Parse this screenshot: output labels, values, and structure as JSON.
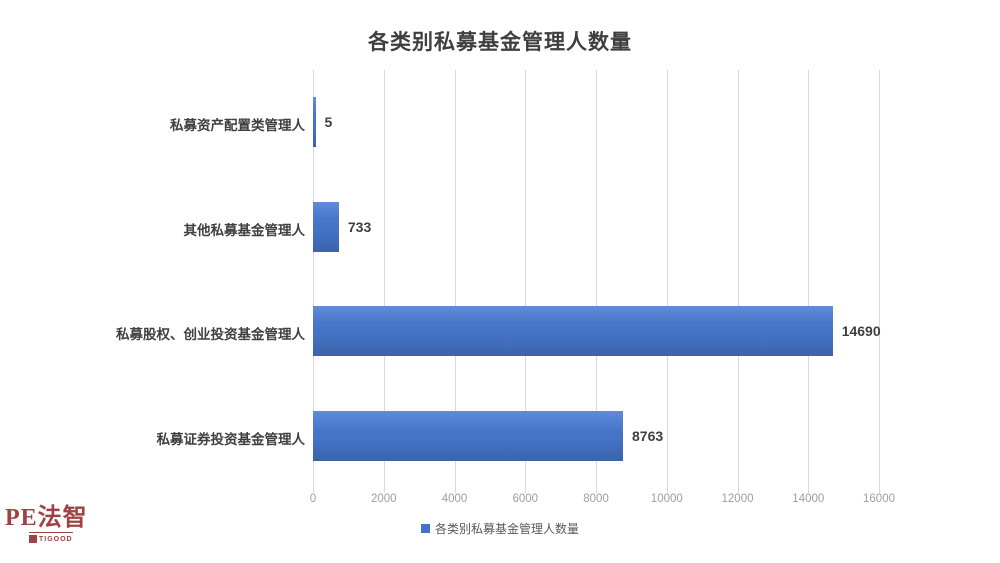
{
  "chart_data": {
    "type": "bar",
    "orientation": "horizontal",
    "title": "各类别私募基金管理人数量",
    "categories": [
      "私募资产配置类管理人",
      "其他私募基金管理人",
      "私募股权、创业投资基金管理人",
      "私募证券投资基金管理人"
    ],
    "values": [
      5,
      733,
      14690,
      8763
    ],
    "xlabel": "",
    "ylabel": "",
    "xlim": [
      0,
      16000
    ],
    "xticks": [
      0,
      2000,
      4000,
      6000,
      8000,
      10000,
      12000,
      14000,
      16000
    ],
    "grid": true,
    "legend": "各类别私募基金管理人数量",
    "legend_position": "bottom",
    "bar_color": "#4472c4",
    "gridline_color": "#d9d9d9",
    "data_label_color": "#3f3f3f",
    "tick_label_color": "#9e9e9e"
  },
  "logo": {
    "text": "PE法智",
    "sub": "TIGOOD",
    "color": "#9e4343"
  }
}
